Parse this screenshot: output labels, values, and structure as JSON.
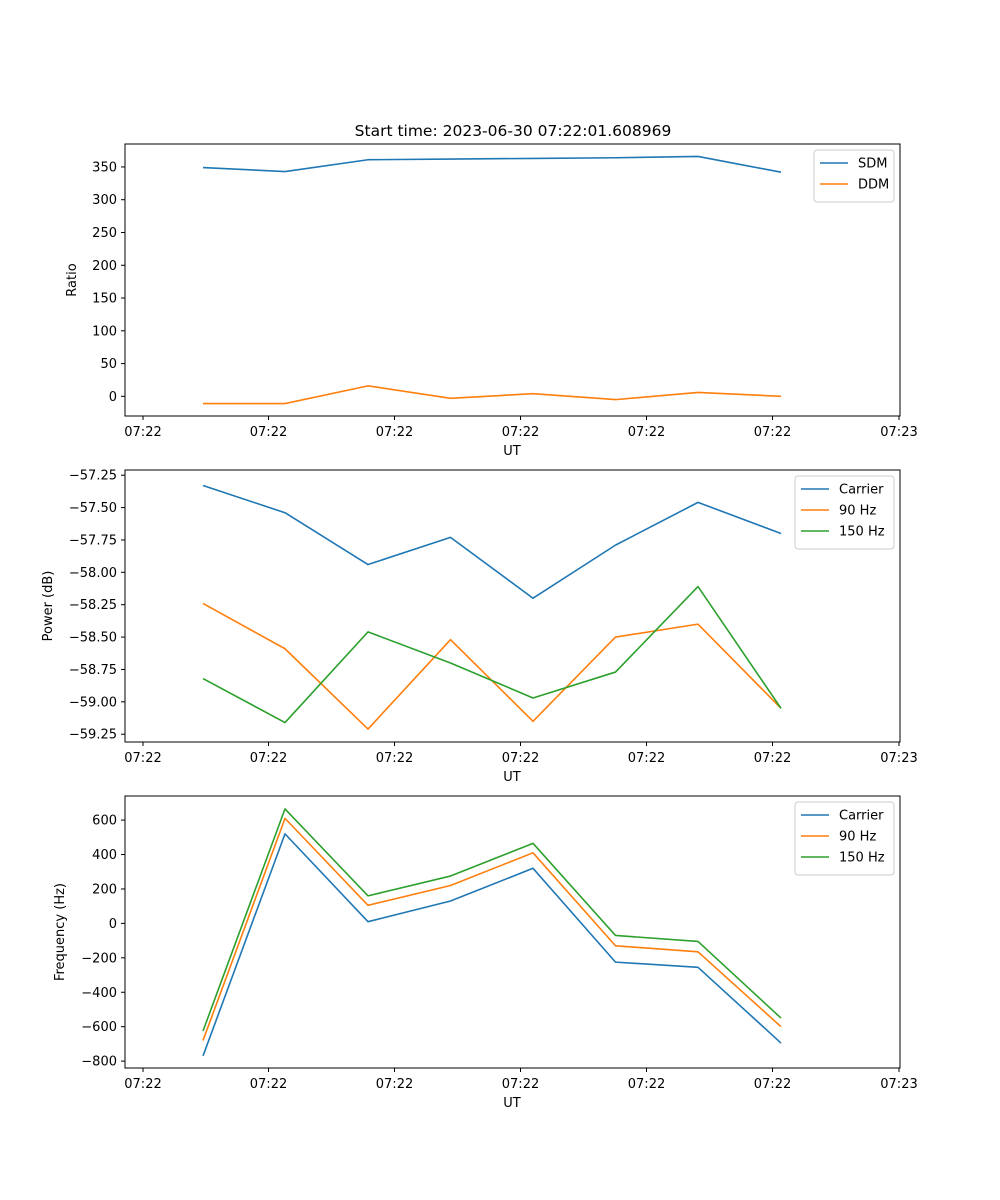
{
  "figure": {
    "title": "Start time: 2023-06-30 07:22:01.608969"
  },
  "chart_data": [
    {
      "type": "line",
      "title": "Start time: 2023-06-30 07:22:01.608969",
      "xlabel": "UT",
      "ylabel": "Ratio",
      "x_tick_labels": [
        "07:22",
        "07:22",
        "07:22",
        "07:22",
        "07:22",
        "07:22",
        "07:23"
      ],
      "y_ticks": [
        0,
        50,
        100,
        150,
        200,
        250,
        300,
        350
      ],
      "ylim": [
        -30,
        385
      ],
      "legend_position": "top-right",
      "grid": false,
      "series": [
        {
          "name": "SDM",
          "color": "#1f77b4",
          "values": [
            349,
            343,
            361,
            362,
            363,
            364,
            366,
            342
          ]
        },
        {
          "name": "DDM",
          "color": "#ff7f0e",
          "values": [
            -11,
            -11,
            16,
            -3,
            4,
            -5,
            6,
            0
          ]
        }
      ]
    },
    {
      "type": "line",
      "xlabel": "UT",
      "ylabel": "Power (dB)",
      "x_tick_labels": [
        "07:22",
        "07:22",
        "07:22",
        "07:22",
        "07:22",
        "07:22",
        "07:23"
      ],
      "y_ticks": [
        -59.25,
        -59.0,
        -58.75,
        -58.5,
        -58.25,
        -58.0,
        -57.75,
        -57.5,
        -57.25
      ],
      "y_tick_labels": [
        "−59.25",
        "−59.00",
        "−58.75",
        "−58.50",
        "−58.25",
        "−58.00",
        "−57.75",
        "−57.50",
        "−57.25"
      ],
      "ylim": [
        -59.31,
        -57.21
      ],
      "legend_position": "top-right",
      "grid": false,
      "series": [
        {
          "name": "Carrier",
          "color": "#1f77b4",
          "values": [
            -57.33,
            -57.54,
            -57.94,
            -57.73,
            -58.2,
            -57.79,
            -57.46,
            -57.7
          ]
        },
        {
          "name": "90 Hz",
          "color": "#ff7f0e",
          "values": [
            -58.24,
            -58.59,
            -59.21,
            -58.52,
            -59.15,
            -58.5,
            -58.4,
            -59.05
          ]
        },
        {
          "name": "150 Hz",
          "color": "#2ca02c",
          "values": [
            -58.82,
            -59.16,
            -58.46,
            -58.7,
            -58.97,
            -58.77,
            -58.11,
            -59.05
          ]
        }
      ]
    },
    {
      "type": "line",
      "xlabel": "UT",
      "ylabel": "Frequency (Hz)",
      "x_tick_labels": [
        "07:22",
        "07:22",
        "07:22",
        "07:22",
        "07:22",
        "07:22",
        "07:23"
      ],
      "y_ticks": [
        -800,
        -600,
        -400,
        -200,
        0,
        200,
        400,
        600
      ],
      "y_tick_labels": [
        "−800",
        "−600",
        "−400",
        "−200",
        "0",
        "200",
        "400",
        "600"
      ],
      "ylim": [
        -840,
        740
      ],
      "legend_position": "top-right",
      "grid": false,
      "series": [
        {
          "name": "Carrier",
          "color": "#1f77b4",
          "values": [
            -770,
            520,
            10,
            130,
            320,
            -225,
            -255,
            -695
          ]
        },
        {
          "name": "90 Hz",
          "color": "#ff7f0e",
          "values": [
            -680,
            610,
            105,
            220,
            410,
            -130,
            -165,
            -600
          ]
        },
        {
          "name": "150 Hz",
          "color": "#2ca02c",
          "values": [
            -625,
            665,
            160,
            275,
            465,
            -70,
            -105,
            -550
          ]
        }
      ]
    }
  ]
}
